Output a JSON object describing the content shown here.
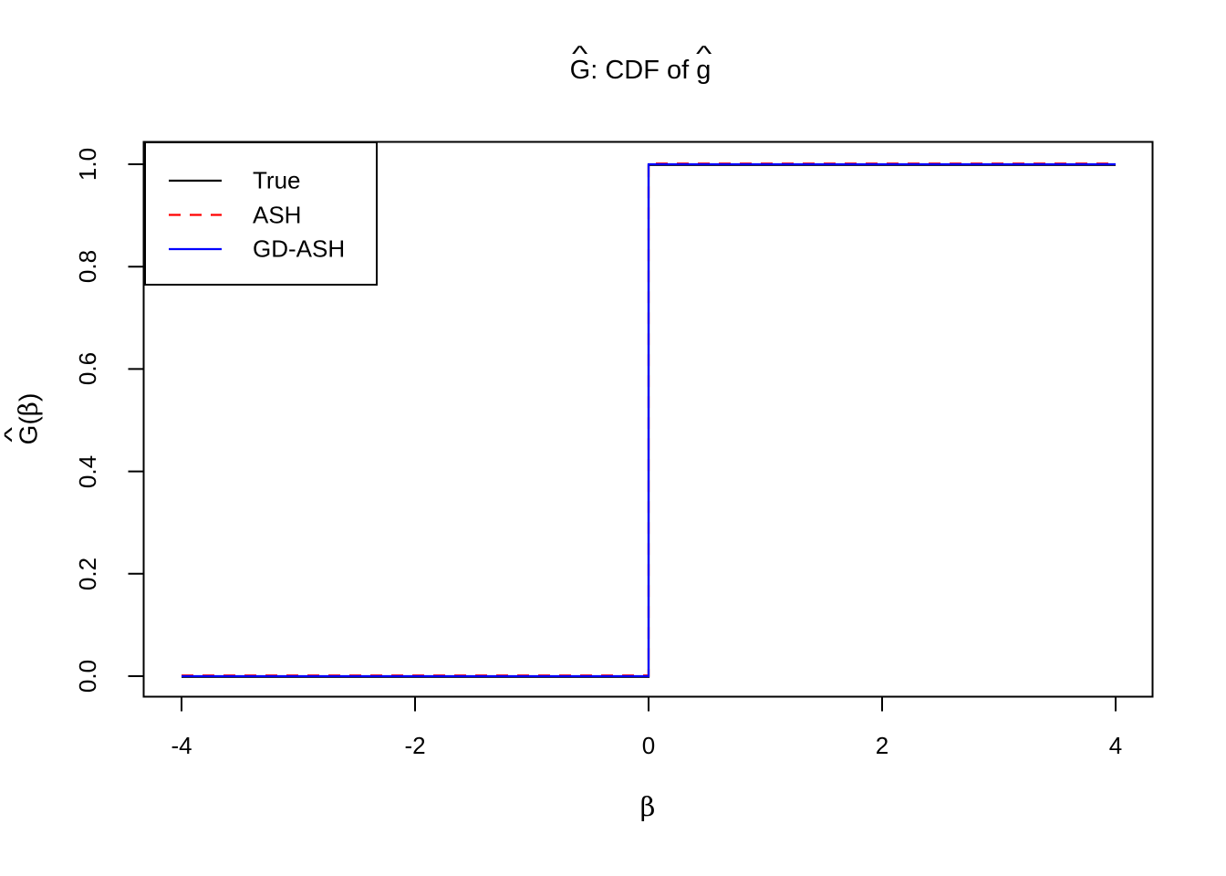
{
  "chart_data": {
    "type": "line",
    "title": "Ĝ: CDF of ĝ",
    "xlabel": "β",
    "ylabel": "Ĝ(β)",
    "xlim": [
      -4.32,
      4.32
    ],
    "ylim": [
      -0.04,
      1.04
    ],
    "x_ticks": [
      -4,
      -2,
      0,
      2,
      4
    ],
    "y_ticks": [
      0,
      0.2,
      0.4,
      0.6,
      0.8,
      1
    ],
    "grid": false,
    "legend_position": "top-left",
    "series": [
      {
        "name": "True",
        "color": "#000000",
        "style": "solid",
        "points": [
          [
            -4,
            0
          ],
          [
            0,
            0
          ],
          [
            0,
            1
          ],
          [
            4,
            1
          ]
        ]
      },
      {
        "name": "ASH",
        "color": "#ff0000",
        "style": "dashed",
        "points": [
          [
            -4,
            0
          ],
          [
            0,
            0
          ],
          [
            0,
            1
          ],
          [
            4,
            1
          ]
        ]
      },
      {
        "name": "GD-ASH",
        "color": "#0000ff",
        "style": "solid",
        "points": [
          [
            -4,
            0
          ],
          [
            0,
            0
          ],
          [
            0,
            1
          ],
          [
            4,
            1
          ]
        ]
      }
    ]
  },
  "title": {
    "g_upper": "G",
    "hat": "^",
    "rest": ": CDF of ",
    "g_lower": "g"
  },
  "x_axis": {
    "label": "β",
    "tick_labels": [
      "-4",
      "-2",
      "0",
      "2",
      "4"
    ]
  },
  "y_axis": {
    "label_letter": "G",
    "label_open": "(",
    "label_beta": "β",
    "label_close": ")",
    "tick_labels": [
      "0.0",
      "0.2",
      "0.4",
      "0.6",
      "0.8",
      "1.0"
    ]
  },
  "legend": {
    "items": [
      {
        "label": "True",
        "color": "#000000",
        "style": "solid"
      },
      {
        "label": "ASH",
        "color": "#ff0000",
        "style": "dashed"
      },
      {
        "label": "GD-ASH",
        "color": "#0000ff",
        "style": "solid"
      }
    ]
  },
  "colors": {
    "background": "#ffffff",
    "foreground": "#000000",
    "ash_red": "#ff0000",
    "gdash_blue": "#0000ff"
  }
}
